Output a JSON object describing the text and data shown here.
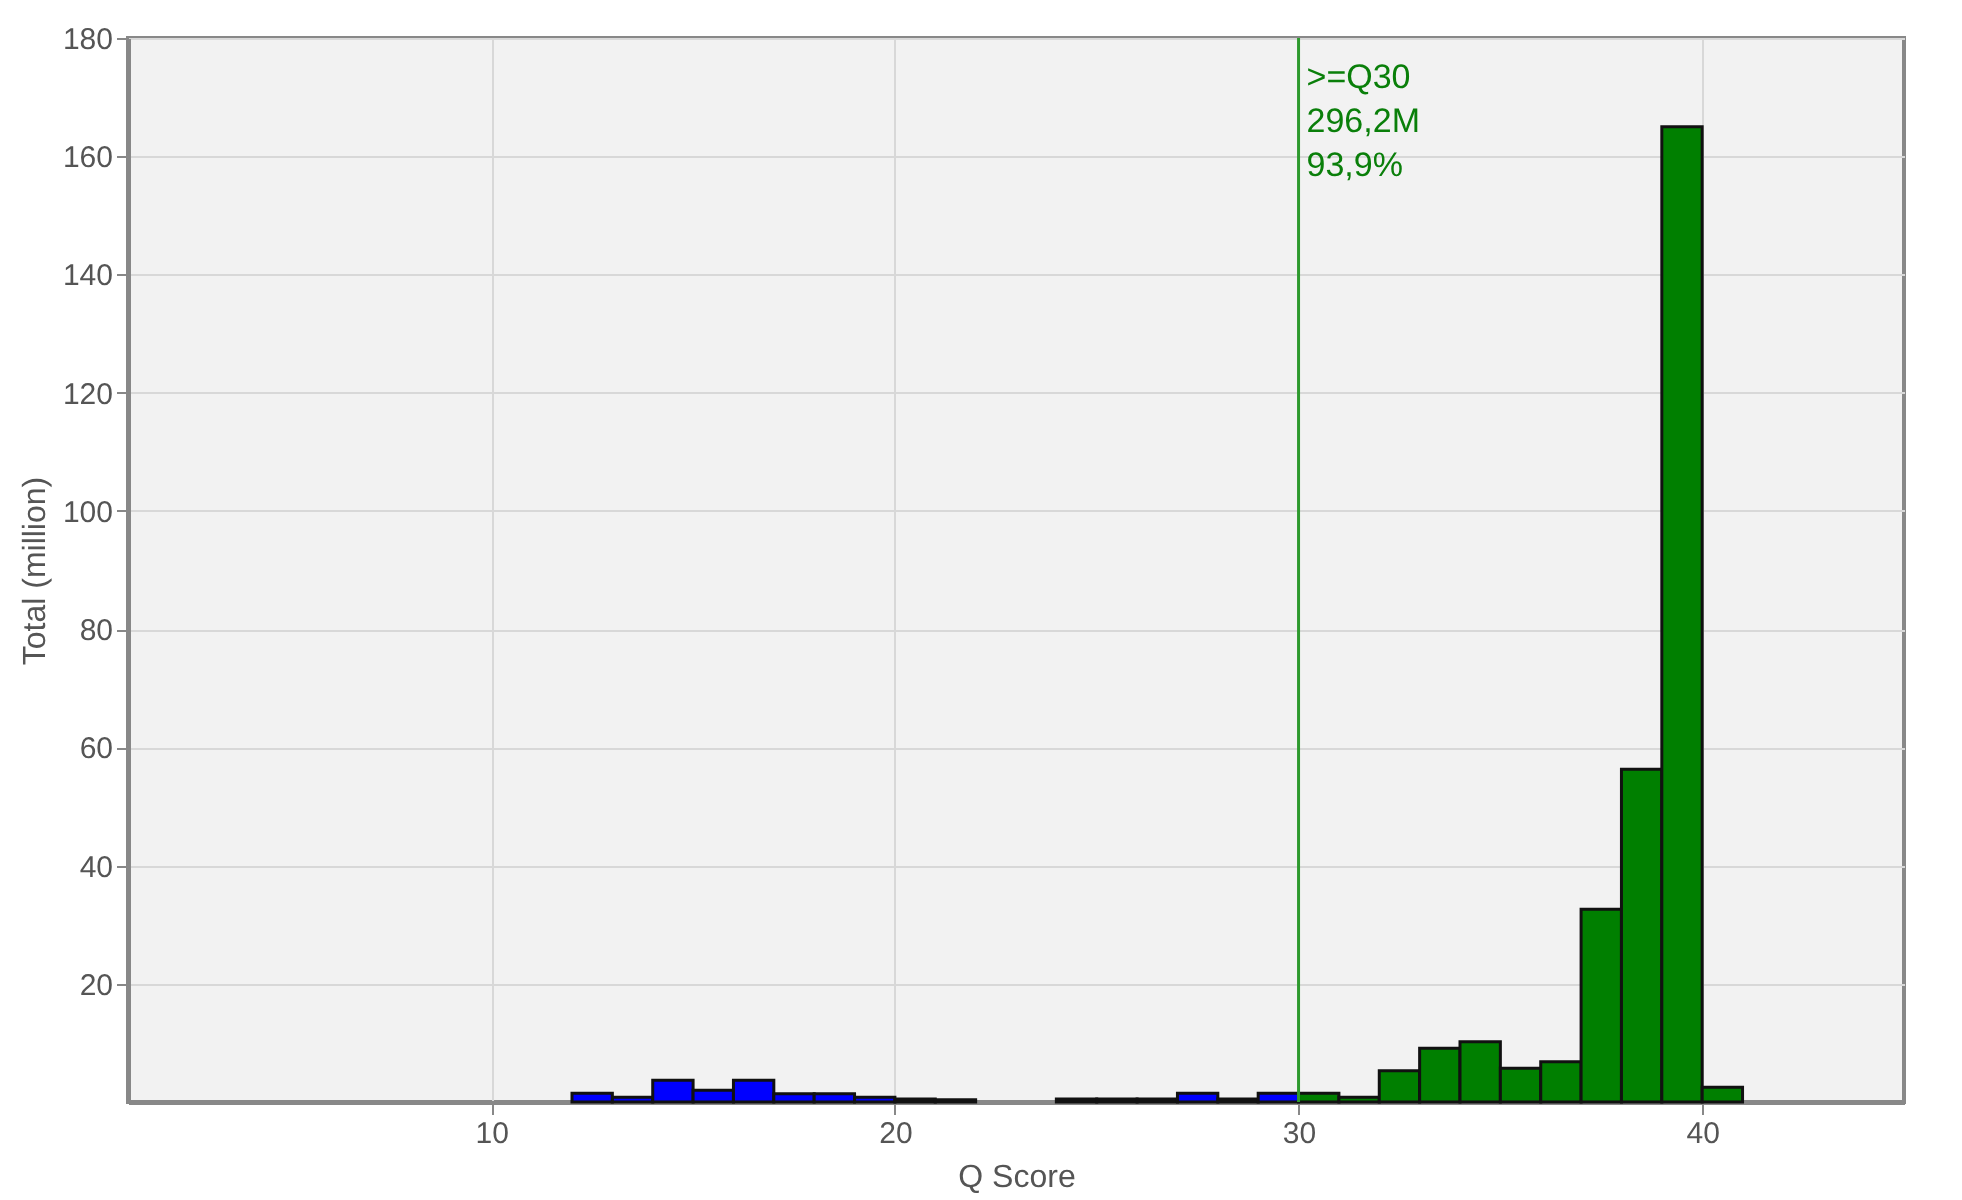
{
  "chart_data": {
    "type": "histogram",
    "xlabel": "Q Score",
    "ylabel": "Total (million)",
    "bins": [
      12,
      13,
      14,
      15,
      16,
      17,
      18,
      19,
      20,
      21,
      22,
      23,
      24,
      25,
      26,
      27,
      28,
      29,
      30,
      31,
      32,
      33,
      34,
      35,
      36,
      37,
      38,
      39,
      40,
      41
    ],
    "values": [
      1.5,
      0.8,
      3.7,
      2,
      3.7,
      1.4,
      1.4,
      0.8,
      0.5,
      0.4,
      null,
      null,
      0.5,
      0.5,
      0.5,
      1.5,
      0.5,
      1.5,
      1.5,
      0.8,
      5.3,
      9.1,
      10.2,
      5.7,
      6.8,
      32.6,
      56.3,
      165,
      2.5
    ],
    "colors": [
      "#0000ff",
      "#0000ff",
      "#0000ff",
      "#0000ff",
      "#0000ff",
      "#0000ff",
      "#0000ff",
      "#0000ff",
      "#0000ff",
      "#0000ff",
      "#0000ff",
      "#0000ff",
      "#0000ff",
      "#0000ff",
      "#0000ff",
      "#0000ff",
      "#0000ff",
      "#0000ff",
      "#007f00",
      "#007f00",
      "#007f00",
      "#007f00",
      "#007f00",
      "#007f00",
      "#007f00",
      "#007f00",
      "#007f00",
      "#007f00",
      "#007f00"
    ],
    "xlim": [
      1,
      45
    ],
    "xticks": [
      10,
      20,
      30,
      40
    ],
    "ylim": [
      0,
      180
    ],
    "yticks": [
      20,
      40,
      60,
      80,
      100,
      120,
      140,
      160,
      180
    ],
    "grid": true,
    "ref_lines": [
      {
        "axis": "x",
        "value": 30,
        "label": ">=Q30\n296,2M\n93,9%",
        "color": "#2e9a2e"
      }
    ]
  }
}
